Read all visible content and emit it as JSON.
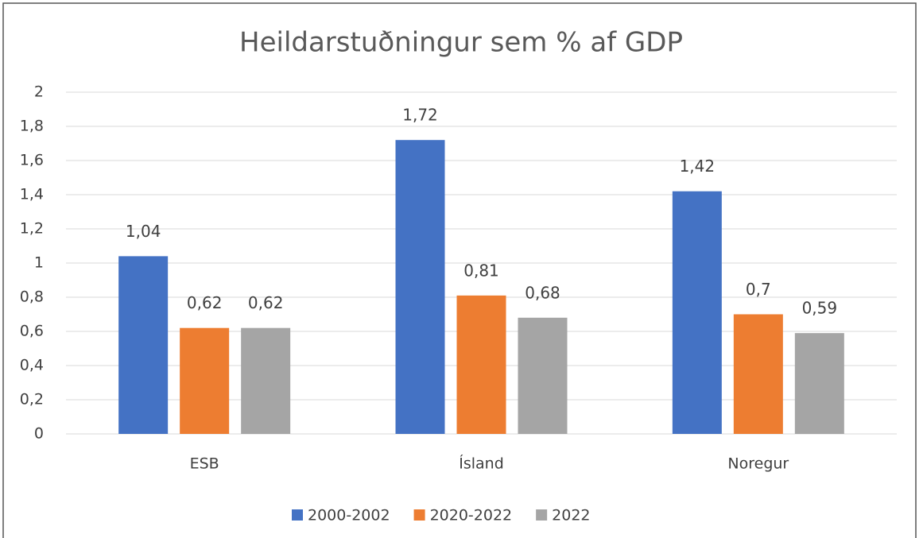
{
  "chart_data": {
    "type": "bar",
    "title": "Heildarstuðningur sem % af GDP",
    "categories": [
      "ESB",
      "Ísland",
      "Noregur"
    ],
    "series": [
      {
        "name": "2000-2002",
        "color": "#4472c4",
        "values": [
          1.04,
          1.72,
          1.42
        ],
        "value_labels": [
          "1,04",
          "1,72",
          "1,42"
        ]
      },
      {
        "name": "2020-2022",
        "color": "#ed7d31",
        "values": [
          0.62,
          0.81,
          0.7
        ],
        "value_labels": [
          "0,62",
          "0,81",
          "0,7"
        ]
      },
      {
        "name": "2022",
        "color": "#a5a5a5",
        "values": [
          0.62,
          0.68,
          0.59
        ],
        "value_labels": [
          "0,62",
          "0,68",
          "0,59"
        ]
      }
    ],
    "ylim": [
      0,
      2
    ],
    "yticks": [
      0,
      {
        "value": 0.2,
        "label": "0,2"
      },
      {
        "value": 0.4,
        "label": "0,4"
      },
      {
        "value": 0.6,
        "label": "0,6"
      },
      {
        "value": 0.8,
        "label": "0,8"
      },
      1,
      {
        "value": 1.2,
        "label": "1,2"
      },
      {
        "value": 1.4,
        "label": "1,4"
      },
      {
        "value": 1.6,
        "label": "1,6"
      },
      {
        "value": 1.8,
        "label": "1,8"
      },
      2
    ],
    "grid": true,
    "legend": "bottom"
  }
}
